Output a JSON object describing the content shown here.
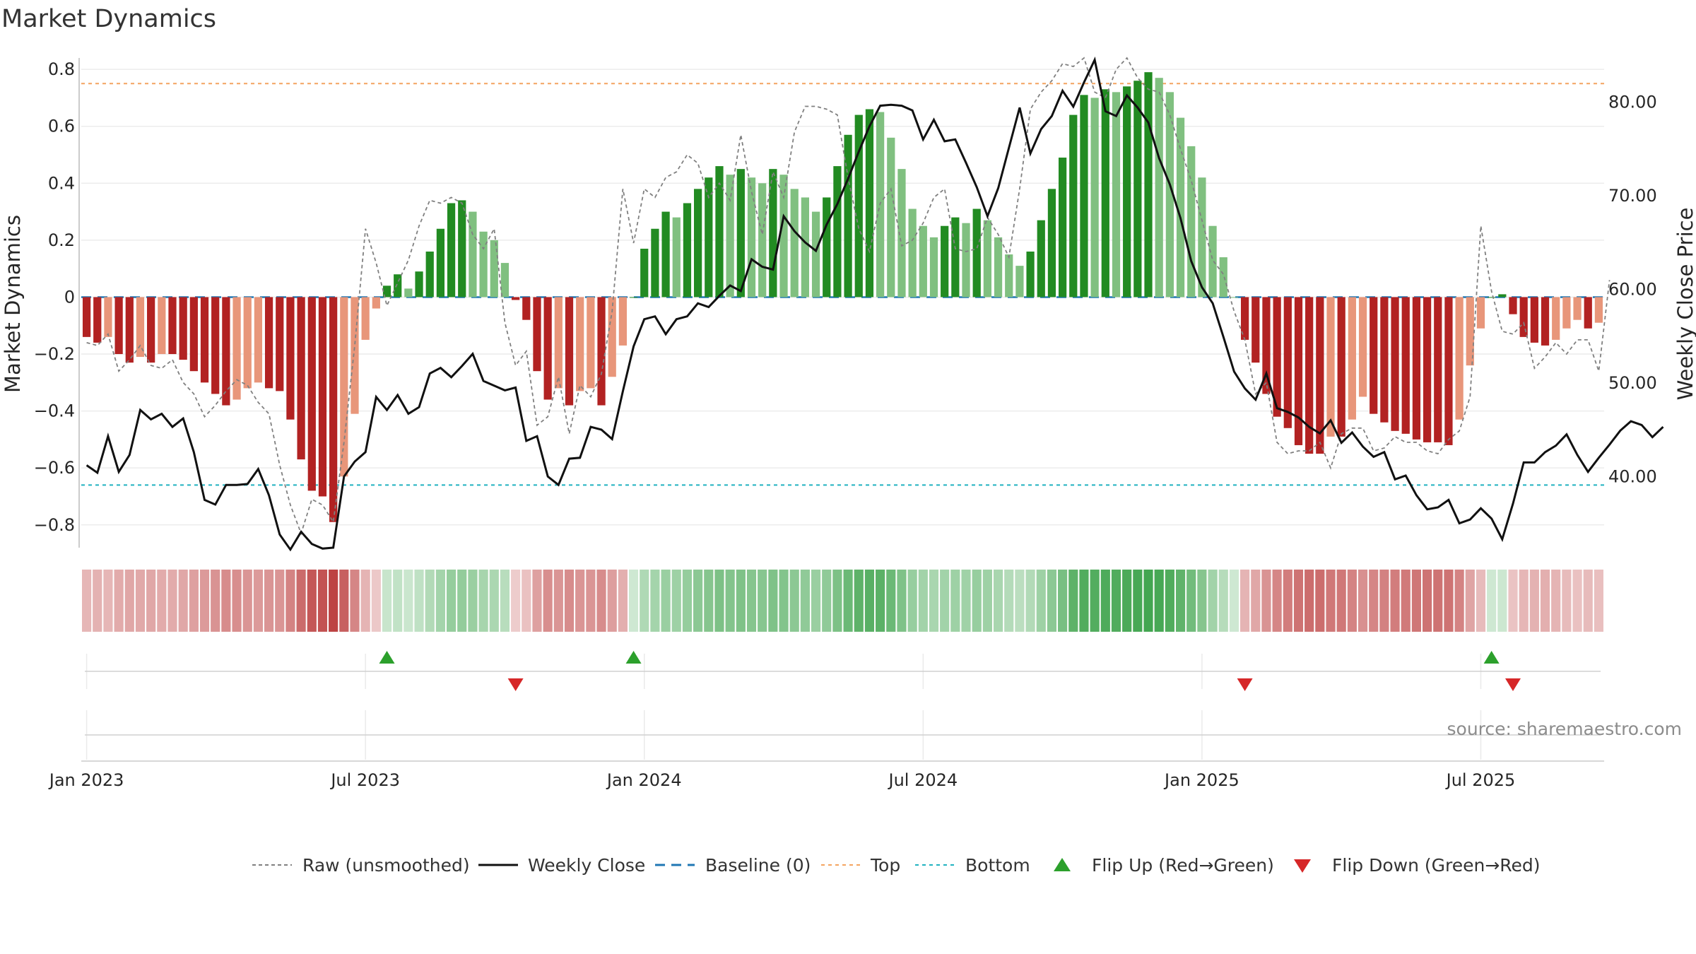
{
  "chart_data": {
    "type": "bar",
    "title": "Market Dynamics",
    "ylabel": "Market Dynamics",
    "y2label": "Weekly Close Price",
    "source": "source: sharemaestro.com",
    "ylim": [
      -0.88,
      0.84
    ],
    "y2lim": [
      32.4,
      84.7
    ],
    "yticks": [
      "0.8",
      "0.6",
      "0.4",
      "0.2",
      "0",
      "−0.2",
      "−0.4",
      "−0.6",
      "−0.8"
    ],
    "y2ticks": [
      "80.00",
      "70.00",
      "60.00",
      "50.00",
      "40.00"
    ],
    "xticks": [
      {
        "label": "Jan 2023",
        "week": 1
      },
      {
        "label": "Jul 2023",
        "week": 27
      },
      {
        "label": "Jan 2024",
        "week": 53
      },
      {
        "label": "Jul 2024",
        "week": 79
      },
      {
        "label": "Jan 2025",
        "week": 105
      },
      {
        "label": "Jul 2025",
        "week": 131
      }
    ],
    "top_line": 0.75,
    "bottom_line": -0.66,
    "weeks": 144,
    "smoothed": [
      -0.14,
      -0.16,
      -0.14,
      -0.2,
      -0.23,
      -0.21,
      -0.23,
      -0.2,
      -0.2,
      -0.22,
      -0.26,
      -0.3,
      -0.34,
      -0.38,
      -0.36,
      -0.32,
      -0.3,
      -0.32,
      -0.33,
      -0.43,
      -0.57,
      -0.68,
      -0.7,
      -0.79,
      -0.63,
      -0.41,
      -0.15,
      -0.04,
      0.04,
      0.08,
      0.03,
      0.09,
      0.16,
      0.24,
      0.33,
      0.34,
      0.3,
      0.23,
      0.2,
      0.12,
      -0.01,
      -0.08,
      -0.26,
      -0.36,
      -0.32,
      -0.38,
      -0.33,
      -0.32,
      -0.38,
      -0.28,
      -0.17,
      0.0,
      0.17,
      0.24,
      0.3,
      0.28,
      0.33,
      0.38,
      0.42,
      0.46,
      0.43,
      0.45,
      0.42,
      0.4,
      0.45,
      0.43,
      0.38,
      0.35,
      0.3,
      0.35,
      0.46,
      0.57,
      0.64,
      0.66,
      0.65,
      0.56,
      0.45,
      0.31,
      0.25,
      0.21,
      0.25,
      0.28,
      0.26,
      0.31,
      0.27,
      0.21,
      0.15,
      0.11,
      0.16,
      0.27,
      0.38,
      0.49,
      0.64,
      0.71,
      0.7,
      0.73,
      0.72,
      0.74,
      0.76,
      0.79,
      0.77,
      0.72,
      0.63,
      0.53,
      0.42,
      0.25,
      0.14,
      0.0,
      -0.15,
      -0.23,
      -0.34,
      -0.42,
      -0.46,
      -0.52,
      -0.55,
      -0.55,
      -0.49,
      -0.49,
      -0.43,
      -0.35,
      -0.41,
      -0.44,
      -0.47,
      -0.48,
      -0.5,
      -0.51,
      -0.51,
      -0.52,
      -0.43,
      -0.24,
      -0.11,
      0.0,
      0.01,
      -0.06,
      -0.14,
      -0.16,
      -0.17,
      -0.15,
      -0.11,
      -0.08,
      -0.11,
      -0.09
    ],
    "raw": [
      -0.16,
      -0.17,
      -0.13,
      -0.26,
      -0.22,
      -0.17,
      -0.24,
      -0.25,
      -0.22,
      -0.3,
      -0.34,
      -0.42,
      -0.38,
      -0.33,
      -0.29,
      -0.31,
      -0.37,
      -0.41,
      -0.59,
      -0.73,
      -0.83,
      -0.71,
      -0.73,
      -0.79,
      -0.51,
      -0.17,
      0.24,
      0.12,
      -0.03,
      0.05,
      0.13,
      0.25,
      0.34,
      0.33,
      0.35,
      0.33,
      0.22,
      0.17,
      0.24,
      -0.09,
      -0.24,
      -0.19,
      -0.45,
      -0.42,
      -0.28,
      -0.48,
      -0.31,
      -0.35,
      -0.27,
      -0.05,
      0.38,
      0.19,
      0.38,
      0.35,
      0.42,
      0.44,
      0.5,
      0.47,
      0.35,
      0.4,
      0.34,
      0.57,
      0.37,
      0.22,
      0.44,
      0.35,
      0.58,
      0.67,
      0.67,
      0.66,
      0.64,
      0.42,
      0.24,
      0.16,
      0.33,
      0.38,
      0.18,
      0.2,
      0.26,
      0.35,
      0.38,
      0.17,
      0.16,
      0.17,
      0.28,
      0.22,
      0.14,
      0.38,
      0.66,
      0.72,
      0.76,
      0.82,
      0.81,
      0.84,
      0.72,
      0.7,
      0.8,
      0.84,
      0.77,
      0.73,
      0.72,
      0.64,
      0.52,
      0.41,
      0.27,
      0.13,
      0.08,
      -0.05,
      -0.15,
      -0.34,
      -0.3,
      -0.51,
      -0.55,
      -0.54,
      -0.54,
      -0.51,
      -0.6,
      -0.48,
      -0.46,
      -0.46,
      -0.54,
      -0.53,
      -0.49,
      -0.51,
      -0.51,
      -0.54,
      -0.55,
      -0.5,
      -0.47,
      -0.35,
      0.25,
      0.02,
      -0.12,
      -0.13,
      -0.09,
      -0.25,
      -0.21,
      -0.16,
      -0.2,
      -0.15,
      -0.15,
      -0.26,
      0.06
    ],
    "close": [
      41.2,
      40.4,
      44.3,
      40.5,
      42.3,
      47.1,
      46.1,
      46.7,
      45.3,
      46.2,
      42.6,
      37.5,
      37.0,
      39.1,
      39.1,
      39.2,
      40.8,
      38.0,
      33.8,
      32.2,
      34.1,
      32.8,
      32.3,
      32.4,
      40.0,
      41.6,
      42.6,
      48.5,
      47.1,
      48.7,
      46.7,
      47.4,
      51.0,
      51.6,
      50.6,
      51.8,
      53.1,
      50.2,
      49.7,
      49.2,
      49.5,
      43.8,
      44.3,
      40.0,
      39.1,
      41.9,
      42.0,
      45.3,
      45.0,
      44.0,
      49.1,
      53.9,
      56.8,
      57.1,
      55.2,
      56.8,
      57.1,
      58.5,
      58.1,
      59.3,
      60.4,
      59.8,
      63.2,
      62.4,
      62.1,
      67.8,
      66.2,
      65.0,
      64.1,
      66.9,
      69.1,
      71.8,
      74.7,
      77.4,
      79.6,
      79.7,
      79.6,
      79.1,
      76.0,
      78.1,
      75.8,
      76.0,
      73.5,
      70.9,
      67.8,
      70.8,
      75.1,
      79.4,
      74.5,
      77.1,
      78.5,
      81.2,
      79.5,
      82.1,
      84.5,
      79.0,
      78.5,
      80.7,
      79.4,
      77.8,
      74.0,
      71.2,
      67.6,
      63.0,
      60.2,
      58.5,
      54.9,
      51.2,
      49.4,
      48.2,
      51.0,
      47.3,
      46.9,
      46.3,
      45.3,
      44.6,
      46.0,
      43.6,
      44.7,
      43.2,
      42.1,
      42.6,
      39.7,
      40.1,
      38.0,
      36.5,
      36.7,
      37.5,
      35.0,
      35.4,
      36.6,
      35.5,
      33.3,
      37.1,
      41.5,
      41.5,
      42.6,
      43.3,
      44.5,
      42.3,
      40.5,
      42.0,
      43.4,
      44.9,
      45.9,
      45.5,
      44.2,
      45.3
    ]
  },
  "legend": [
    {
      "label": "Raw (unsmoothed)",
      "icon": "dash-gray"
    },
    {
      "label": "Weekly Close",
      "icon": "line-black"
    },
    {
      "label": "Baseline (0)",
      "icon": "dash-blue"
    },
    {
      "label": "Top",
      "icon": "dot-orange"
    },
    {
      "label": "Bottom",
      "icon": "dot-cyan"
    },
    {
      "label": "Flip Up (Red→Green)",
      "icon": "triangle-up-green"
    },
    {
      "label": "Flip Down (Green→Red)",
      "icon": "triangle-down-red"
    }
  ],
  "colors": {
    "green_strong": "#228b22",
    "green_light": "#80c080",
    "red_strong": "#b22222",
    "red_light": "#e8967a",
    "raw": "#808080",
    "close": "#111111",
    "baseline": "#1f77b4",
    "top": "#f4a460",
    "bottom": "#20b2c0",
    "flip_up": "#2ca02c",
    "flip_down": "#d62728"
  }
}
